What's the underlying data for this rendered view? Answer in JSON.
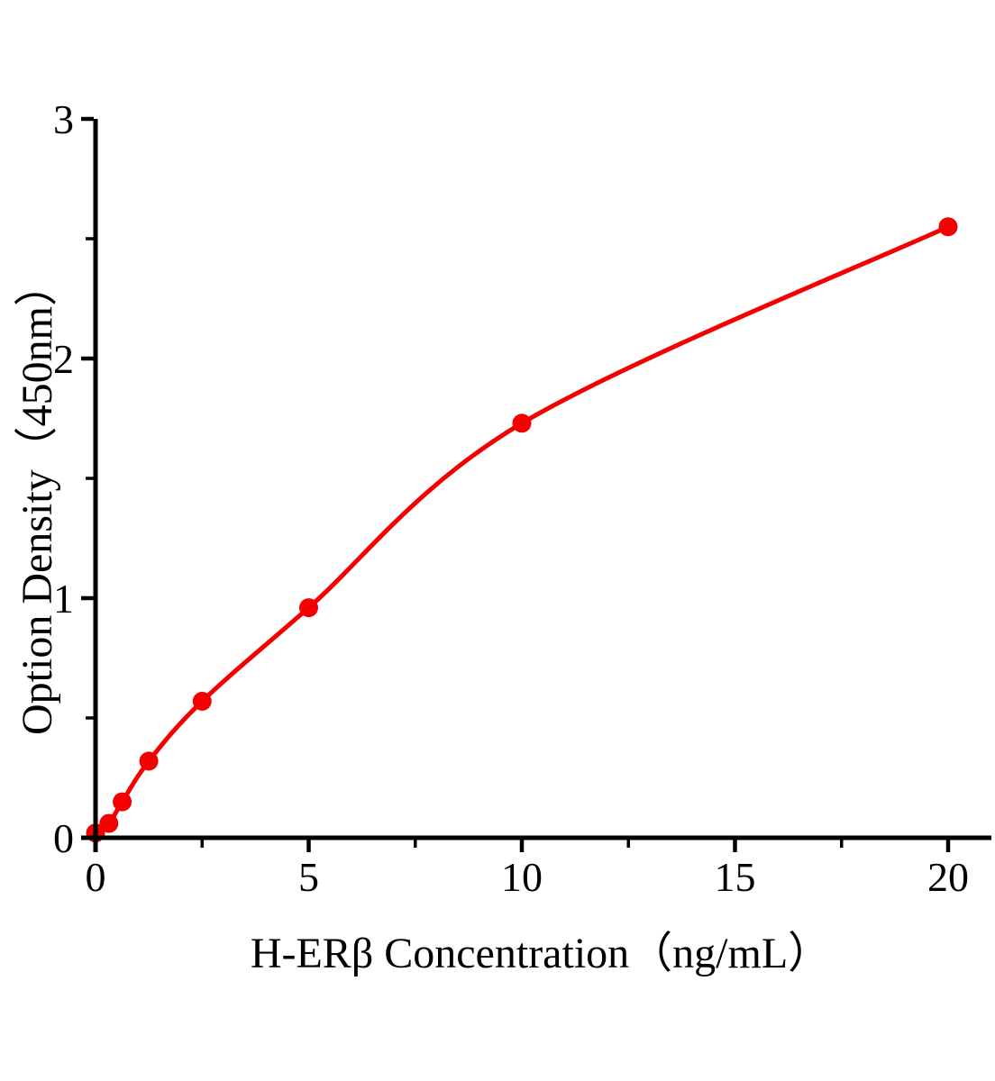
{
  "chart_data": {
    "type": "line",
    "title": "",
    "xlabel": "H-ERβ Concentration（ng/mL）",
    "ylabel": "Option Density（450nm）",
    "x": [
      0,
      0.313,
      0.625,
      1.25,
      2.5,
      5,
      10,
      20
    ],
    "y": [
      0.02,
      0.06,
      0.15,
      0.32,
      0.57,
      0.96,
      1.73,
      2.55
    ],
    "xlim": [
      0,
      20
    ],
    "ylim": [
      0,
      3
    ],
    "x_major_ticks": [
      0,
      5,
      10,
      15,
      20
    ],
    "x_minor_ticks": [
      2.5,
      7.5,
      12.5,
      17.5
    ],
    "y_major_ticks": [
      0,
      1,
      2,
      3
    ],
    "y_minor_ticks": [
      0.5,
      1.5,
      2.5
    ],
    "x_tick_labels": [
      "0",
      "5",
      "10",
      "15",
      "20"
    ],
    "y_tick_labels": [
      "0",
      "1",
      "2",
      "3"
    ],
    "grid": false,
    "legend": "none",
    "marker": "circle",
    "series_color": "#f40000",
    "axis_color": "#000000",
    "background_color": "#ffffff"
  }
}
